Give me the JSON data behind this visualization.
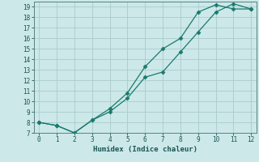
{
  "xlabel": "Humidex (Indice chaleur)",
  "bg_color": "#cce8e8",
  "grid_color": "#aacccc",
  "line_color": "#1a7a6e",
  "line1_x": [
    0,
    1,
    2,
    3,
    4,
    5,
    6,
    7,
    8,
    9,
    10,
    11,
    12
  ],
  "line1_y": [
    8.0,
    7.7,
    7.0,
    8.2,
    9.3,
    10.8,
    13.3,
    15.0,
    16.0,
    18.5,
    19.2,
    18.8,
    18.8
  ],
  "line2_x": [
    0,
    1,
    2,
    3,
    4,
    5,
    6,
    7,
    8,
    9,
    10,
    11,
    12
  ],
  "line2_y": [
    8.0,
    7.7,
    7.0,
    8.2,
    9.0,
    10.3,
    12.3,
    12.8,
    14.7,
    16.6,
    18.5,
    19.3,
    18.8
  ],
  "xlim": [
    -0.3,
    12.3
  ],
  "ylim": [
    7,
    19.5
  ],
  "yticks": [
    7,
    8,
    9,
    10,
    11,
    12,
    13,
    14,
    15,
    16,
    17,
    18,
    19
  ],
  "xticks": [
    0,
    1,
    2,
    3,
    4,
    5,
    6,
    7,
    8,
    9,
    10,
    11,
    12
  ]
}
